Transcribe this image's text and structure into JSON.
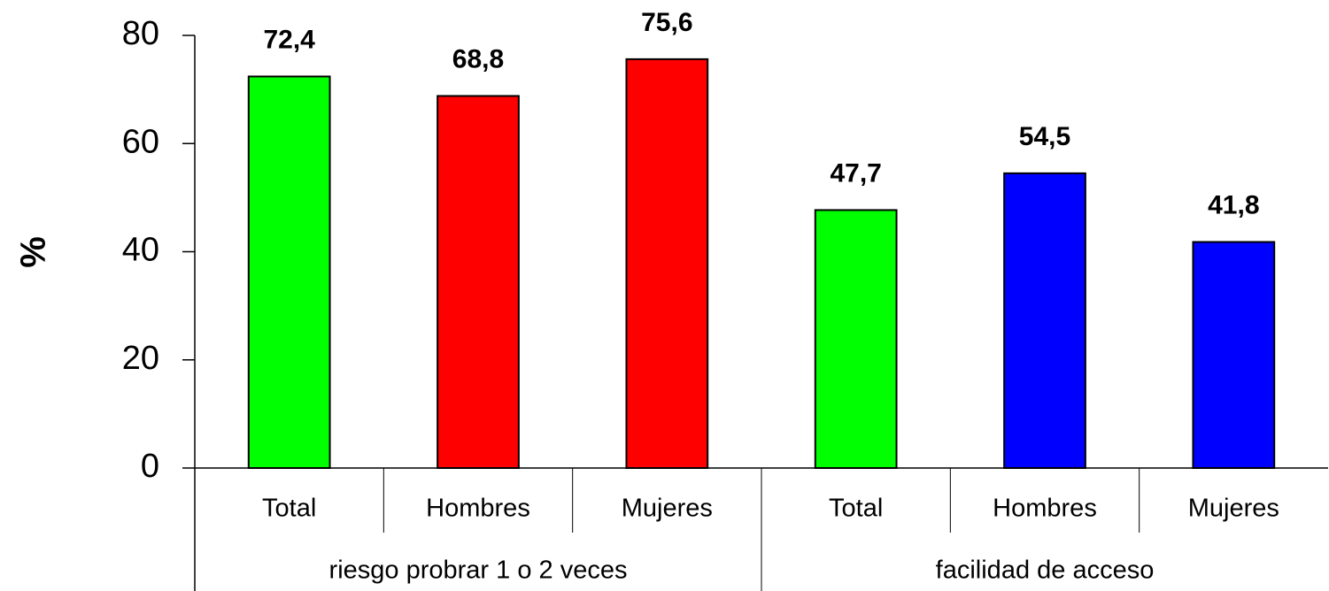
{
  "chart_data": {
    "type": "bar",
    "y_label": "%",
    "ylim": [
      0,
      80
    ],
    "yticks": [
      0,
      20,
      40,
      60,
      80
    ],
    "groups": [
      {
        "name": "riesgo probrar 1 o 2 veces",
        "categories": [
          "Total",
          "Hombres",
          "Mujeres"
        ],
        "values": [
          72.4,
          68.8,
          75.6
        ],
        "value_labels": [
          "72,4",
          "68,8",
          "75,6"
        ],
        "colors": [
          "#00ff00",
          "#ff0000",
          "#ff0000"
        ]
      },
      {
        "name": "facilidad de acceso",
        "categories": [
          "Total",
          "Hombres",
          "Mujeres"
        ],
        "values": [
          47.7,
          54.5,
          41.8
        ],
        "value_labels": [
          "47,7",
          "54,5",
          "41,8"
        ],
        "colors": [
          "#00ff00",
          "#0000ff",
          "#0000ff"
        ]
      }
    ]
  }
}
